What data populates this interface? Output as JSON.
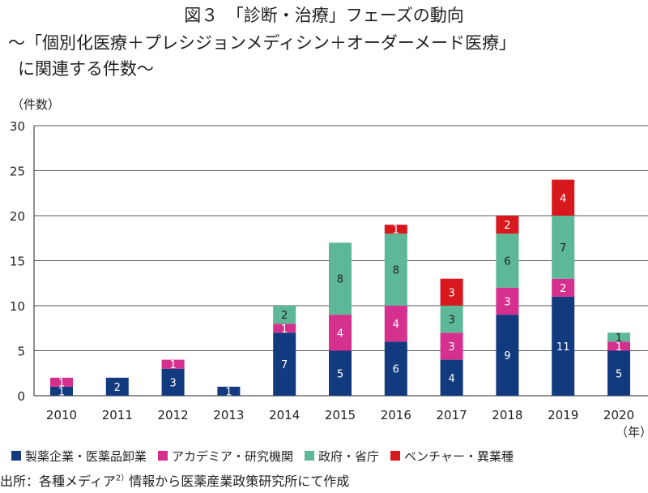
{
  "title": {
    "line1": "図３　「診断・治療」フェーズの動向",
    "line2": "～「個別化医療＋プレシジョンメディシン＋オーダーメード医療」",
    "line3": "に関連する件数～"
  },
  "y_unit": "（件数）",
  "x_unit": "（年）",
  "source": {
    "prefix": "出所：各種メディア",
    "sup": "2）",
    "suffix": "情報から医薬産業政策研究所にて作成"
  },
  "colors": {
    "pharma": "#123a7e",
    "academia": "#d6308f",
    "government": "#5cb897",
    "venture": "#d7191e",
    "axis": "#231f20",
    "grid": "#231f20"
  },
  "chart_data": {
    "type": "bar",
    "stacked": true,
    "categories": [
      "2010",
      "2011",
      "2012",
      "2013",
      "2014",
      "2015",
      "2016",
      "2017",
      "2018",
      "2019",
      "2020"
    ],
    "ylim": [
      0,
      30
    ],
    "yticks": [
      0,
      5,
      10,
      15,
      20,
      25,
      30
    ],
    "grid": true,
    "series": [
      {
        "key": "pharma",
        "name": "製薬企業・医薬品卸業",
        "values": [
          1,
          2,
          3,
          1,
          7,
          5,
          6,
          4,
          9,
          11,
          5
        ]
      },
      {
        "key": "academia",
        "name": "アカデミア・研究機関",
        "values": [
          1,
          0,
          1,
          0,
          1,
          4,
          4,
          3,
          3,
          2,
          1
        ]
      },
      {
        "key": "government",
        "name": "政府・省庁",
        "values": [
          0,
          0,
          0,
          0,
          2,
          8,
          8,
          3,
          6,
          7,
          1
        ]
      },
      {
        "key": "venture",
        "name": "ベンチャー・異業種",
        "values": [
          0,
          0,
          0,
          0,
          0,
          0,
          1,
          3,
          2,
          4,
          0
        ]
      }
    ],
    "xlabel": "（年）",
    "ylabel": "（件数）"
  }
}
